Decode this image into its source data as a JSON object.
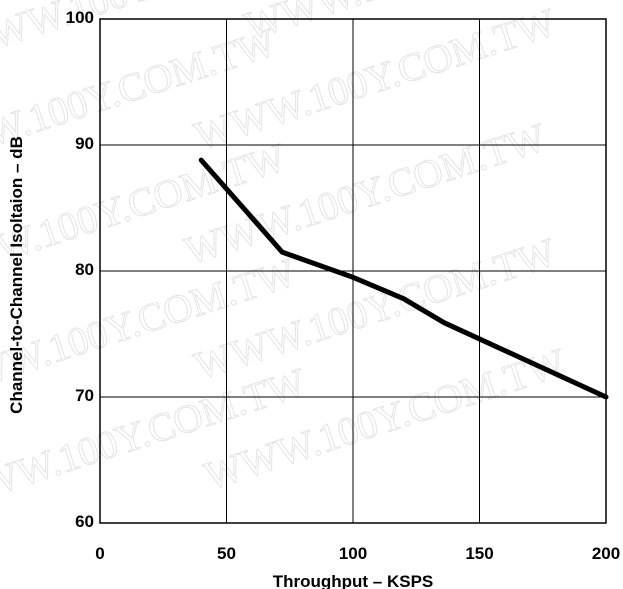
{
  "colors": {
    "line": "#000000",
    "grid": "#000000",
    "background": "#ffffff",
    "watermark": "#e4e4e4"
  },
  "watermark_text": "WWW.100Y.COM.TW",
  "chart_data": {
    "type": "line",
    "title": "",
    "xlabel": "Throughput – KSPS",
    "ylabel": "Channel-to-Channel Isoltaion – dB",
    "xlim": [
      0,
      200
    ],
    "ylim": [
      60,
      100
    ],
    "xticks": [
      0,
      50,
      100,
      150,
      200
    ],
    "yticks": [
      60,
      70,
      80,
      90,
      100
    ],
    "x_tick_labels": [
      "0",
      "50",
      "100",
      "150",
      "200"
    ],
    "y_tick_labels": [
      "60",
      "70",
      "80",
      "90",
      "100"
    ],
    "grid": true,
    "legend": "none",
    "series": [
      {
        "x": [
          40,
          72,
          100,
          120,
          136,
          200
        ],
        "y": [
          88.8,
          81.5,
          79.5,
          77.8,
          75.9,
          70.0
        ]
      }
    ]
  }
}
